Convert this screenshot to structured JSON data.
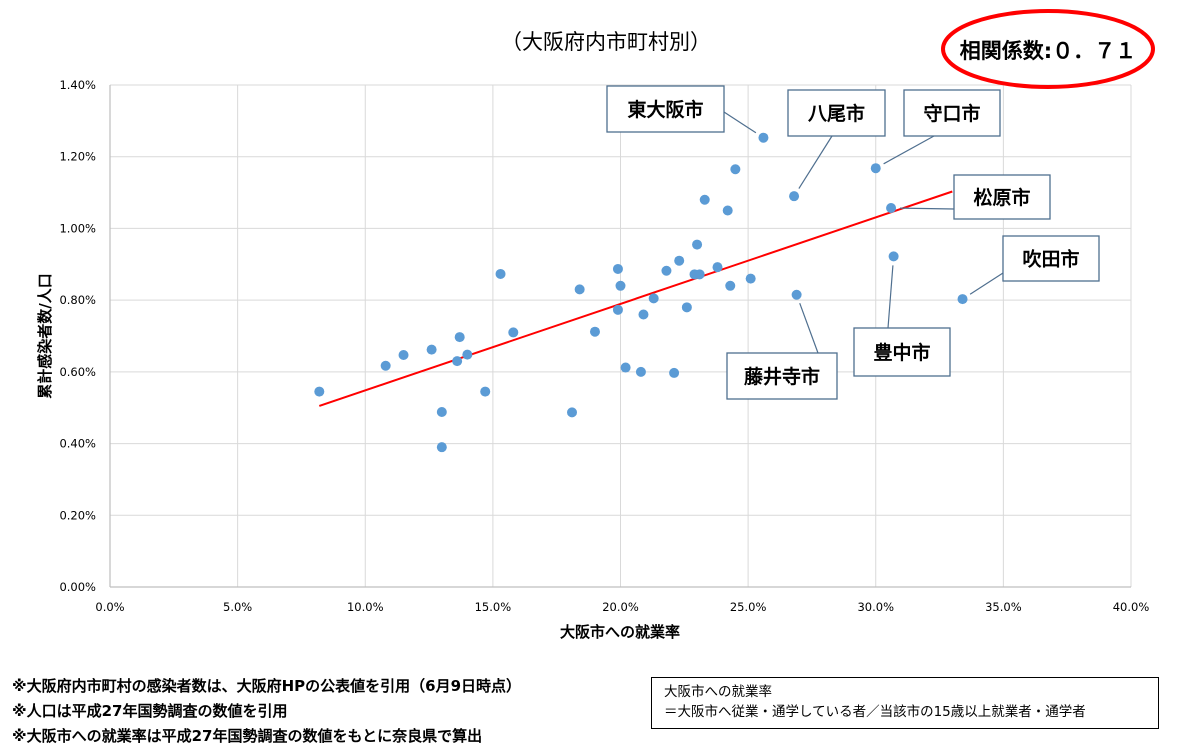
{
  "chart_data": {
    "type": "scatter",
    "title": "（大阪府内市町村別）",
    "xlabel": "大阪市への就業率",
    "ylabel": "累計感染者数/人口",
    "xlim": [
      0,
      0.4
    ],
    "ylim": [
      0,
      0.014
    ],
    "x_ticks": [
      "0.0%",
      "5.0%",
      "10.0%",
      "15.0%",
      "20.0%",
      "25.0%",
      "30.0%",
      "35.0%",
      "40.0%"
    ],
    "y_ticks": [
      "0.00%",
      "0.20%",
      "0.40%",
      "0.60%",
      "0.80%",
      "1.00%",
      "1.20%",
      "1.40%"
    ],
    "grid": true,
    "marker_color": "#5b9bd5",
    "trendline_color": "#ff0000",
    "trendline": {
      "x": [
        0.082,
        0.33
      ],
      "y": [
        0.00505,
        0.01103
      ]
    },
    "correlation": "相関係数:０．７１",
    "points": [
      {
        "x": 0.082,
        "y": 0.00545
      },
      {
        "x": 0.108,
        "y": 0.00617
      },
      {
        "x": 0.115,
        "y": 0.00647
      },
      {
        "x": 0.126,
        "y": 0.00662
      },
      {
        "x": 0.13,
        "y": 0.00488
      },
      {
        "x": 0.13,
        "y": 0.0039
      },
      {
        "x": 0.136,
        "y": 0.0063
      },
      {
        "x": 0.137,
        "y": 0.00697
      },
      {
        "x": 0.14,
        "y": 0.00648
      },
      {
        "x": 0.147,
        "y": 0.00545
      },
      {
        "x": 0.153,
        "y": 0.00873
      },
      {
        "x": 0.158,
        "y": 0.0071
      },
      {
        "x": 0.181,
        "y": 0.00487
      },
      {
        "x": 0.184,
        "y": 0.0083
      },
      {
        "x": 0.19,
        "y": 0.00712
      },
      {
        "x": 0.199,
        "y": 0.00887
      },
      {
        "x": 0.199,
        "y": 0.00773
      },
      {
        "x": 0.2,
        "y": 0.0084
      },
      {
        "x": 0.202,
        "y": 0.00612
      },
      {
        "x": 0.208,
        "y": 0.006
      },
      {
        "x": 0.209,
        "y": 0.0076
      },
      {
        "x": 0.213,
        "y": 0.00805
      },
      {
        "x": 0.218,
        "y": 0.00882
      },
      {
        "x": 0.221,
        "y": 0.00597
      },
      {
        "x": 0.223,
        "y": 0.0091
      },
      {
        "x": 0.226,
        "y": 0.0078
      },
      {
        "x": 0.229,
        "y": 0.00872
      },
      {
        "x": 0.23,
        "y": 0.00955
      },
      {
        "x": 0.231,
        "y": 0.00872
      },
      {
        "x": 0.233,
        "y": 0.0108
      },
      {
        "x": 0.238,
        "y": 0.00892
      },
      {
        "x": 0.242,
        "y": 0.0105
      },
      {
        "x": 0.243,
        "y": 0.0084
      },
      {
        "x": 0.245,
        "y": 0.01165
      },
      {
        "x": 0.251,
        "y": 0.0086
      },
      {
        "x": 0.256,
        "y": 0.01253,
        "label": "東大阪市"
      },
      {
        "x": 0.268,
        "y": 0.0109,
        "label": "八尾市"
      },
      {
        "x": 0.269,
        "y": 0.00815,
        "label": "藤井寺市"
      },
      {
        "x": 0.3,
        "y": 0.01168,
        "label": "守口市"
      },
      {
        "x": 0.306,
        "y": 0.01057,
        "label": "松原市"
      },
      {
        "x": 0.307,
        "y": 0.00922,
        "label": "豊中市"
      },
      {
        "x": 0.334,
        "y": 0.00803,
        "label": "吹田市"
      }
    ]
  },
  "notes": [
    "※大阪府内市町村の感染者数は、大阪府HPの公表値を引用（6月9日時点）",
    "※人口は平成27年国勢調査の数値を引用",
    "※大阪市への就業率は平成27年国勢調査の数値をもとに奈良県で算出"
  ],
  "definition": {
    "title": "大阪市への就業率",
    "formula": "＝大阪市へ従業・通学している者／当該市の15歳以上就業者・通学者"
  }
}
